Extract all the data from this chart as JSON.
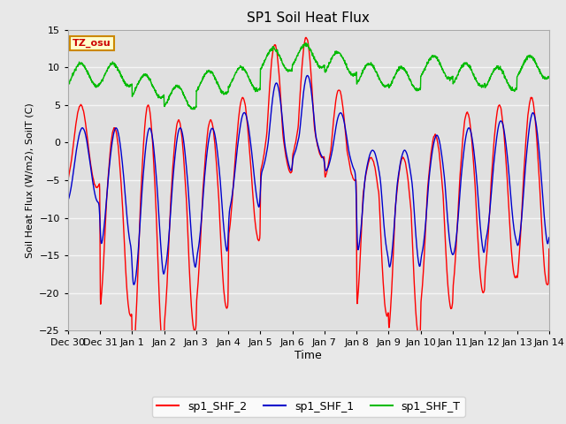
{
  "title": "SP1 Soil Heat Flux",
  "xlabel": "Time",
  "ylabel": "Soil Heat Flux (W/m2), SoilT (C)",
  "ylim": [
    -25,
    15
  ],
  "fig_bg": "#e8e8e8",
  "plot_bg": "#e0e0e0",
  "grid_color": "#f5f5f5",
  "legend_label_red": "sp1_SHF_2",
  "legend_label_blue": "sp1_SHF_1",
  "legend_label_green": "sp1_SHF_T",
  "tz_label": "TZ_osu",
  "line_color_red": "#ff0000",
  "line_color_blue": "#0000cc",
  "line_color_green": "#00bb00",
  "xtick_labels": [
    "Dec 30",
    "Dec 31",
    "Jan 1",
    "Jan 2",
    "Jan 3",
    "Jan 4",
    "Jan 5",
    "Jan 6",
    "Jan 7",
    "Jan 8",
    "Jan 9",
    "Jan 10",
    "Jan 11",
    "Jan 12",
    "Jan 13",
    "Jan 14"
  ],
  "ytick_values": [
    -25,
    -20,
    -15,
    -10,
    -5,
    0,
    5,
    10,
    15
  ],
  "num_points": 2000
}
